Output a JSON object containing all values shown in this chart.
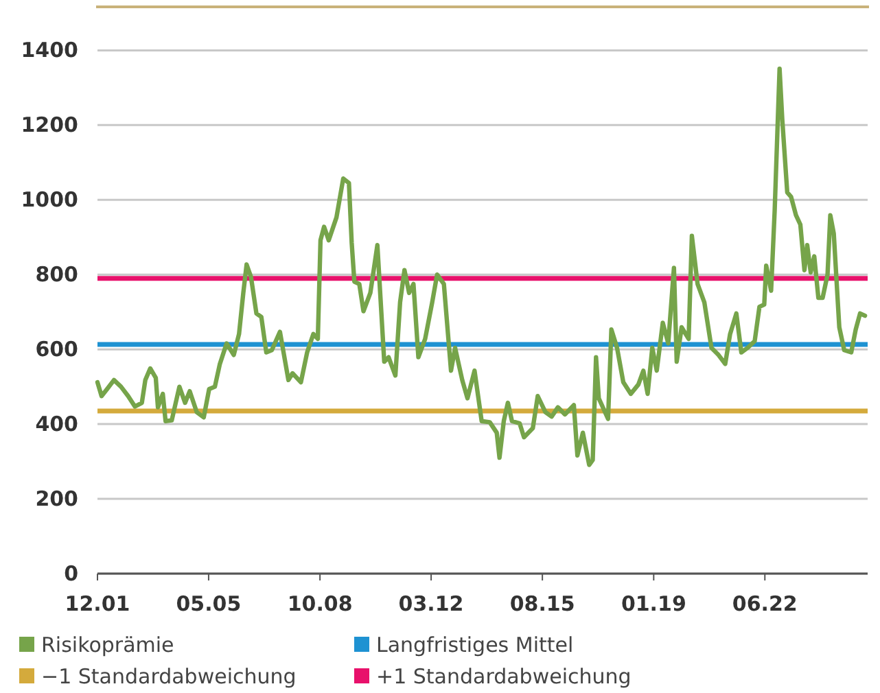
{
  "chart_data": {
    "type": "line",
    "x": [
      "2001-12-01",
      "2002-01-16",
      "2002-03-19",
      "2002-06-04",
      "2002-08-22",
      "2002-11-10",
      "2003-01-25",
      "2003-04-13",
      "2003-05-22",
      "2003-07-16",
      "2003-09-16",
      "2003-10-10",
      "2003-12-04",
      "2004-01-04",
      "2004-03-13",
      "2004-06-07",
      "2004-08-10",
      "2004-10-01",
      "2004-12-19",
      "2005-03-07",
      "2005-05-07",
      "2005-07-10",
      "2005-09-04",
      "2005-11-19",
      "2006-02-07",
      "2006-04-07",
      "2006-05-25",
      "2006-07-01",
      "2006-08-19",
      "2006-10-19",
      "2006-12-13",
      "2007-02-07",
      "2007-04-10",
      "2007-07-10",
      "2007-10-13",
      "2007-11-28",
      "2008-03-01",
      "2008-05-10",
      "2008-07-19",
      "2008-09-07",
      "2008-10-07",
      "2008-11-16",
      "2009-01-07",
      "2009-04-04",
      "2009-06-19",
      "2009-08-22",
      "2009-09-22",
      "2009-10-22",
      "2009-12-16",
      "2010-02-01",
      "2010-04-19",
      "2010-07-07",
      "2010-09-22",
      "2010-11-10",
      "2011-01-25",
      "2011-03-19",
      "2011-05-07",
      "2011-06-28",
      "2011-08-16",
      "2011-10-10",
      "2011-12-25",
      "2012-03-13",
      "2012-05-07",
      "2012-07-22",
      "2012-10-10",
      "2012-11-25",
      "2013-02-13",
      "2013-04-13",
      "2013-07-01",
      "2013-09-19",
      "2013-12-19",
      "2014-03-07",
      "2014-04-07",
      "2014-05-25",
      "2014-07-10",
      "2014-08-25",
      "2014-11-19",
      "2015-01-07",
      "2015-04-16",
      "2015-06-10",
      "2015-09-04",
      "2015-11-13",
      "2016-01-22",
      "2016-04-10",
      "2016-07-19",
      "2016-08-28",
      "2016-10-28",
      "2017-01-07",
      "2017-02-16",
      "2017-03-25",
      "2017-04-25",
      "2017-08-07",
      "2017-09-13",
      "2017-11-16",
      "2018-01-25",
      "2018-04-19",
      "2018-07-13",
      "2018-09-07",
      "2018-10-25",
      "2018-12-16",
      "2019-02-04",
      "2019-04-13",
      "2019-06-13",
      "2019-08-16",
      "2019-09-16",
      "2019-11-10",
      "2020-01-28",
      "2020-03-04",
      "2020-05-07",
      "2020-07-22",
      "2020-10-10",
      "2020-12-28",
      "2021-03-13",
      "2021-05-07",
      "2021-07-16",
      "2021-09-10",
      "2021-11-19",
      "2022-02-07",
      "2022-04-01",
      "2022-05-25",
      "2022-06-16",
      "2022-08-10",
      "2022-09-19",
      "2022-11-13",
      "2022-12-13",
      "2023-02-07",
      "2023-03-22",
      "2023-05-16",
      "2023-07-04",
      "2023-08-19",
      "2023-09-19",
      "2023-10-28",
      "2023-12-07",
      "2024-01-22",
      "2024-03-10",
      "2024-05-04",
      "2024-06-04",
      "2024-07-13",
      "2024-09-13",
      "2024-11-07",
      "2025-01-25",
      "2025-03-16",
      "2025-05-04",
      "2025-06-28"
    ],
    "series": [
      {
        "name": "Risikoprämie",
        "color": "#76a44a",
        "values": [
          512,
          475,
          494,
          518,
          500,
          475,
          447,
          457,
          518,
          549,
          524,
          445,
          481,
          408,
          410,
          500,
          457,
          488,
          432,
          418,
          494,
          500,
          561,
          616,
          585,
          641,
          751,
          827,
          794,
          696,
          687,
          592,
          598,
          647,
          518,
          536,
          512,
          592,
          641,
          628,
          892,
          928,
          892,
          953,
          1057,
          1045,
          885,
          781,
          775,
          702,
          751,
          879,
          567,
          579,
          530,
          726,
          812,
          751,
          775,
          579,
          628,
          726,
          800,
          775,
          543,
          604,
          518,
          469,
          543,
          408,
          405,
          377,
          310,
          408,
          457,
          408,
          402,
          365,
          389,
          475,
          432,
          420,
          445,
          426,
          451,
          316,
          377,
          291,
          304,
          579,
          469,
          414,
          653,
          604,
          512,
          481,
          506,
          543,
          481,
          604,
          543,
          671,
          616,
          818,
          567,
          659,
          628,
          904,
          775,
          726,
          604,
          585,
          561,
          641,
          696,
          592,
          604,
          622,
          714,
          720,
          824,
          757,
          971,
          1351,
          1216,
          1020,
          1008,
          959,
          934,
          812,
          879,
          806,
          849,
          738,
          738,
          800,
          959,
          910,
          659,
          598,
          592,
          653,
          696,
          690
        ]
      }
    ],
    "ref_lines": [
      {
        "axis": "y",
        "value": 613,
        "label": "Langfristiges Mittel",
        "color": "#1e92d2"
      },
      {
        "axis": "y",
        "value": 435,
        "label": "−1 Standardabweichung",
        "color": "#d4aa3c"
      },
      {
        "axis": "y",
        "value": 790,
        "label": "+1 Standardabweichung",
        "color": "#e8116b"
      }
    ],
    "xlim": [
      "2001-12-01",
      "2025-07-28"
    ],
    "xticks": [
      {
        "value": "2001-12",
        "label": "12.01"
      },
      {
        "value": "2005-05",
        "label": "05.05"
      },
      {
        "value": "2008-10",
        "label": "10.08"
      },
      {
        "value": "2012-03",
        "label": "03.12"
      },
      {
        "value": "2015-08",
        "label": "08.15"
      },
      {
        "value": "2019-01",
        "label": "01.19"
      },
      {
        "value": "2022-06",
        "label": "06.22"
      }
    ],
    "ylim": [
      0,
      1400
    ],
    "yticks": [
      0,
      200,
      400,
      600,
      800,
      1000,
      1200,
      1400
    ],
    "grid": "y",
    "legend": "bottom",
    "marker": "none",
    "line_style": "solid"
  }
}
